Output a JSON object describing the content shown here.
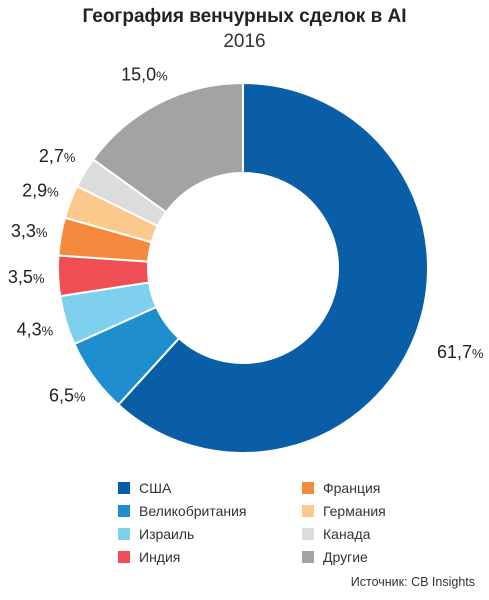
{
  "title": "География венчурных сделок в AI",
  "subtitle": "2016",
  "source": "Источник: CB Insights",
  "chart_data": {
    "type": "pie",
    "donut": true,
    "title": "География венчурных сделок в AI",
    "subtitle": "2016",
    "legend_position": "bottom",
    "categories": [
      "США",
      "Великобритания",
      "Израиль",
      "Индия",
      "Франция",
      "Германия",
      "Канада",
      "Другие"
    ],
    "values": [
      61.7,
      6.5,
      4.3,
      3.5,
      3.3,
      2.9,
      2.7,
      15.0
    ],
    "labels": [
      "61,7%",
      "6,5%",
      "4,3%",
      "3,5%",
      "3,3%",
      "2,9%",
      "2,7%",
      "15,0%"
    ],
    "colors": [
      "#0a5ea8",
      "#1f8ecf",
      "#7fd0ee",
      "#ee4e54",
      "#f58a3e",
      "#fbc98b",
      "#dcdcdc",
      "#a3a3a1"
    ]
  }
}
